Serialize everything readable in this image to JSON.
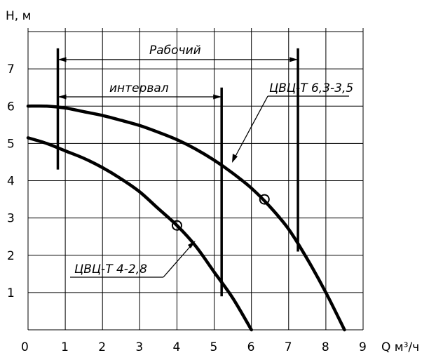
{
  "chart_data": {
    "type": "line",
    "title": "",
    "xlabel": "Q м³/ч",
    "ylabel": "Н, м",
    "xlim": [
      0,
      9
    ],
    "ylim": [
      0,
      8
    ],
    "x_ticks": [
      "0",
      "1",
      "2",
      "3",
      "4",
      "5",
      "6",
      "7",
      "8",
      "9"
    ],
    "y_ticks": [
      "1",
      "2",
      "3",
      "4",
      "5",
      "6",
      "7"
    ],
    "grid": true,
    "legend": "none",
    "series": [
      {
        "name": "ЦВЦ-Т 6,3-3,5",
        "x": [
          0,
          0.5,
          1,
          1.5,
          2,
          2.5,
          3,
          3.5,
          4,
          4.5,
          5,
          5.5,
          6,
          6.5,
          7,
          7.5,
          8,
          8.5
        ],
        "y": [
          6.0,
          6.0,
          5.95,
          5.85,
          5.75,
          5.62,
          5.48,
          5.3,
          5.1,
          4.85,
          4.55,
          4.2,
          3.8,
          3.3,
          2.7,
          1.9,
          1.0,
          0.0
        ],
        "marker_point": [
          6.35,
          3.5
        ]
      },
      {
        "name": "ЦВЦ-Т 4-2,8",
        "x": [
          0,
          0.5,
          1,
          1.5,
          2,
          2.5,
          3,
          3.5,
          4,
          4.5,
          5,
          5.5,
          6
        ],
        "y": [
          5.15,
          5.0,
          4.8,
          4.6,
          4.35,
          4.05,
          3.7,
          3.25,
          2.8,
          2.25,
          1.55,
          0.85,
          0.0
        ],
        "marker_point": [
          4.0,
          2.8
        ]
      }
    ],
    "annotations": [
      {
        "text": "Рабочий",
        "x_start": 0.8,
        "x_end": 7.25,
        "y": 7.25
      },
      {
        "text": "интервал",
        "x_start": 0.8,
        "x_end": 5.2,
        "y": 6.25
      }
    ],
    "boundary_lines": [
      {
        "x": 0.8,
        "y_from": 4.3,
        "y_to": 7.55
      },
      {
        "x": 5.2,
        "y_from": 0.9,
        "y_to": 6.5
      },
      {
        "x": 7.25,
        "y_from": 2.1,
        "y_to": 7.55
      }
    ]
  }
}
